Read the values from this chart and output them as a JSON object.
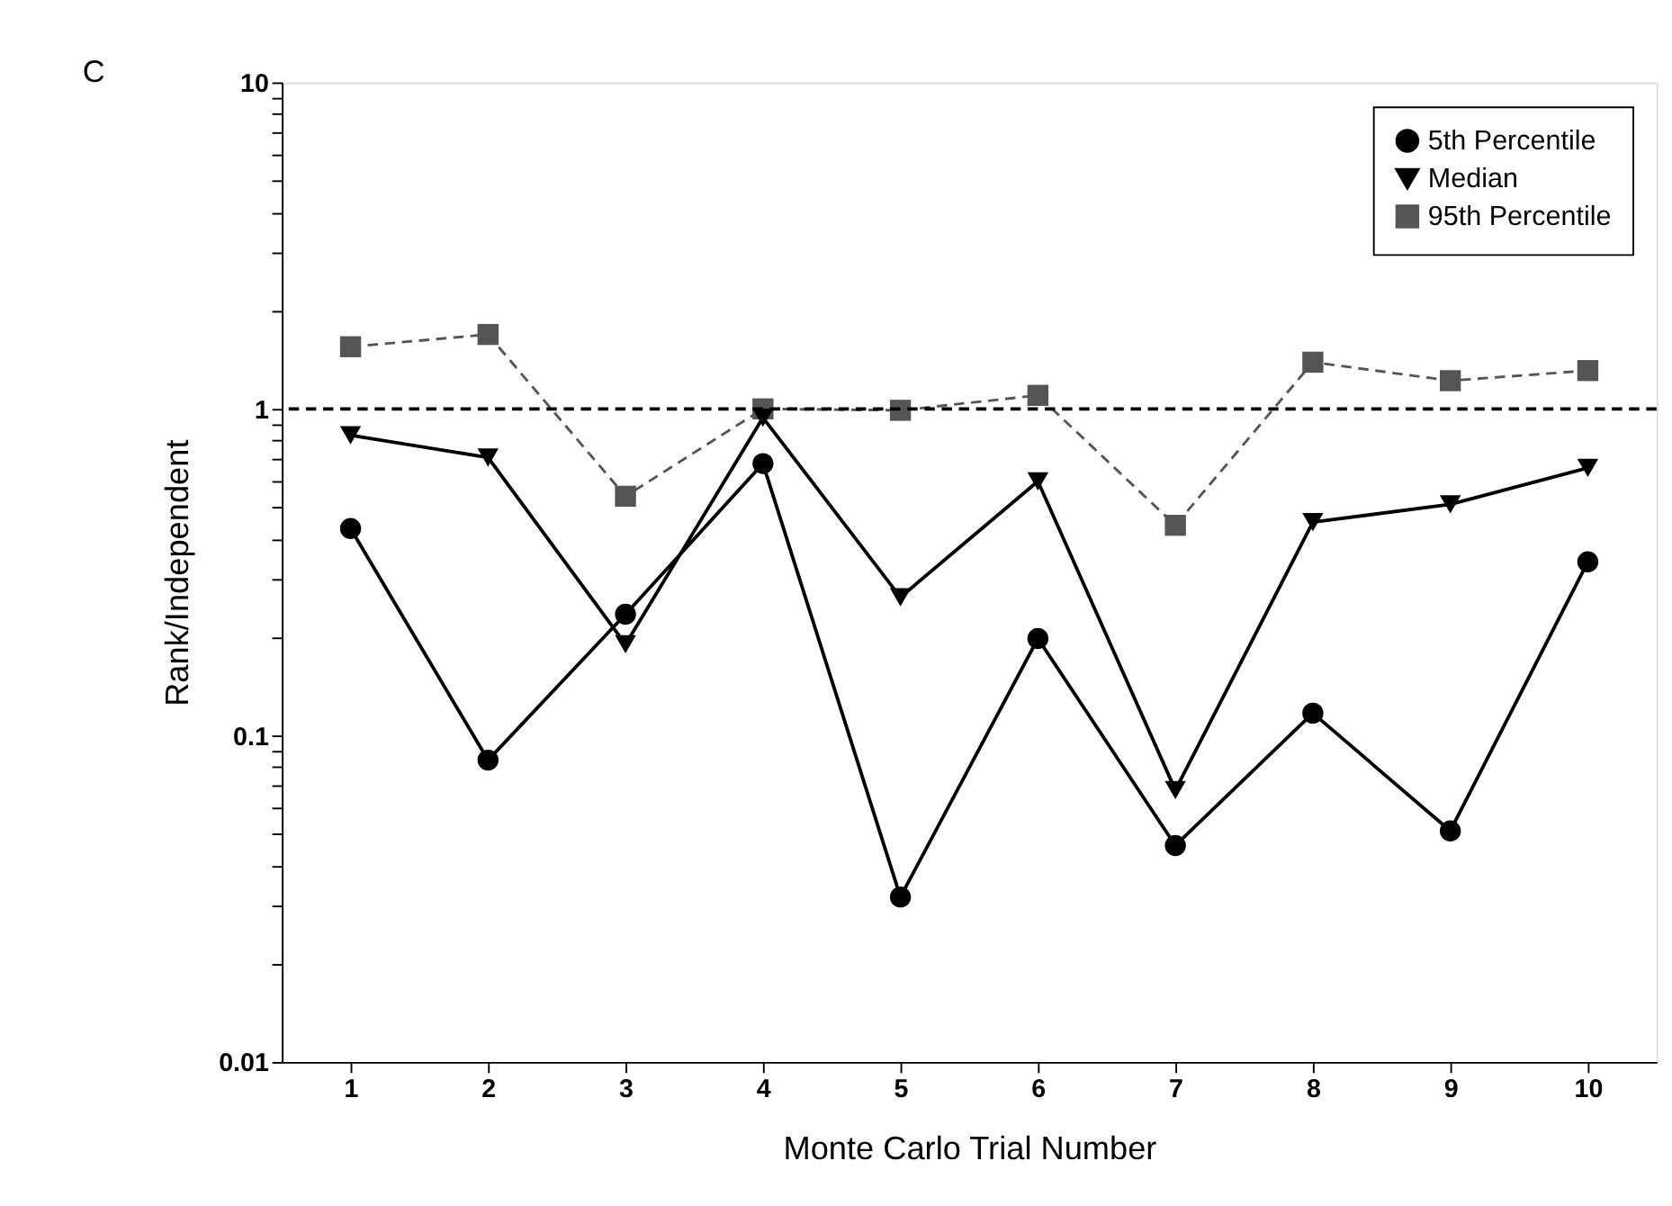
{
  "chart_data": {
    "type": "line",
    "xlabel": "Monte Carlo Trial Number",
    "ylabel": "Rank/Independent",
    "annotations": [
      "C"
    ],
    "x": [
      1,
      2,
      3,
      4,
      5,
      6,
      7,
      8,
      9,
      10
    ],
    "xlim": [
      0.5,
      10.5
    ],
    "xticks": [
      1,
      2,
      3,
      4,
      5,
      6,
      7,
      8,
      9,
      10
    ],
    "log": "y",
    "ylim": [
      0.01,
      10
    ],
    "yticks": [
      0.01,
      {
        "value": 0.02,
        "label": null
      },
      {
        "value": 0.03,
        "label": null
      },
      {
        "value": 0.04,
        "label": null
      },
      {
        "value": 0.05,
        "label": null
      },
      {
        "value": 0.06,
        "label": null
      },
      {
        "value": 0.07,
        "label": null
      },
      {
        "value": 0.08,
        "label": null
      },
      {
        "value": 0.09,
        "label": null
      },
      0.1,
      {
        "value": 0.2,
        "label": null
      },
      {
        "value": 0.3,
        "label": null
      },
      {
        "value": 0.4,
        "label": null
      },
      {
        "value": 0.5,
        "label": null
      },
      {
        "value": 0.6,
        "label": null
      },
      {
        "value": 0.7,
        "label": null
      },
      {
        "value": 0.8,
        "label": null
      },
      {
        "value": 0.9,
        "label": null
      },
      1,
      {
        "value": 2,
        "label": null
      },
      {
        "value": 3,
        "label": null
      },
      {
        "value": 4,
        "label": null
      },
      {
        "value": 5,
        "label": null
      },
      {
        "value": 6,
        "label": null
      },
      {
        "value": 7,
        "label": null
      },
      {
        "value": 8,
        "label": null
      },
      {
        "value": 9,
        "label": null
      },
      10
    ],
    "grid": false,
    "legend": "top right",
    "ref_lines": [
      {
        "axis": "y",
        "value": 1,
        "line_style": "dashed",
        "color": "#000000"
      }
    ],
    "series": [
      {
        "name": "5th Percentile",
        "color": "#000000",
        "marker": "circle",
        "line_style": "solid",
        "values": [
          0.43,
          0.084,
          0.235,
          0.68,
          0.032,
          0.198,
          0.046,
          0.117,
          0.051,
          0.34
        ]
      },
      {
        "name": "Median",
        "color": "#000000",
        "marker": "triangle",
        "line_style": "solid",
        "values": [
          0.83,
          0.71,
          0.19,
          0.94,
          0.265,
          0.6,
          0.068,
          0.45,
          0.51,
          0.66
        ]
      },
      {
        "name": "95th Percentile",
        "color": "#555555",
        "marker": "square",
        "line_style": "dashed",
        "values": [
          1.55,
          1.69,
          0.54,
          1.0,
          0.99,
          1.1,
          0.44,
          1.39,
          1.22,
          1.31
        ]
      }
    ]
  }
}
